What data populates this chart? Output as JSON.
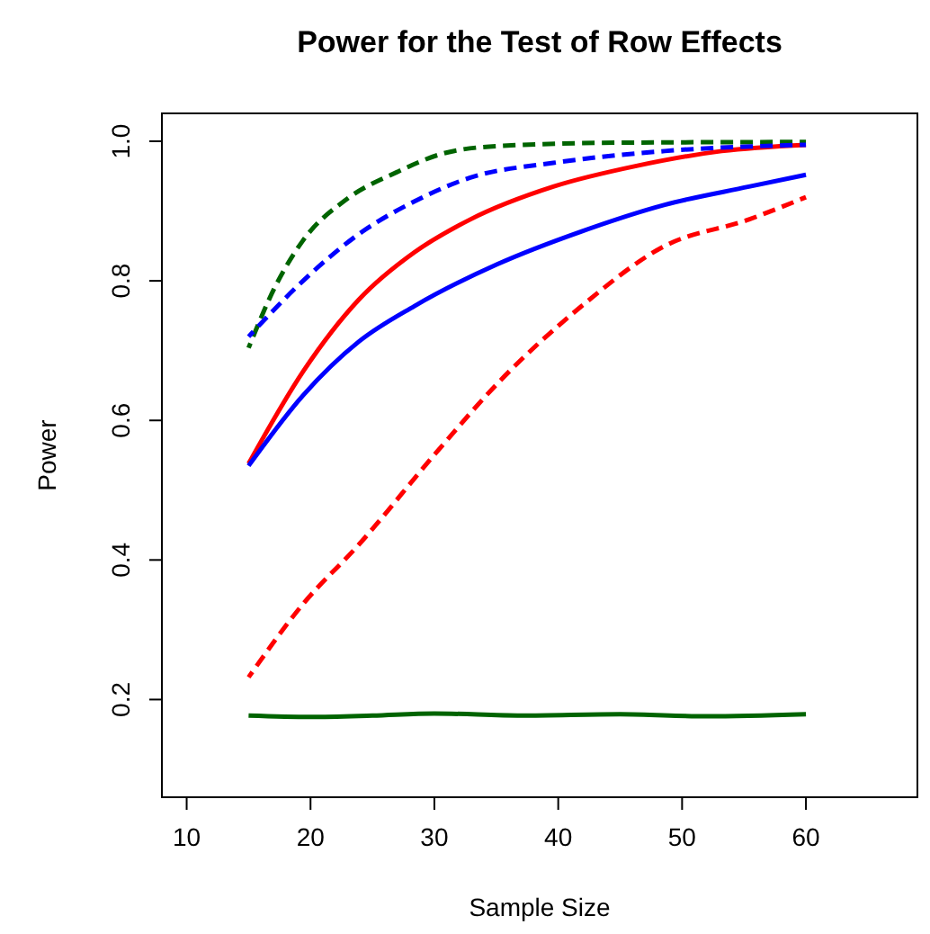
{
  "chart_data": {
    "type": "line",
    "title": "Power for the Test of Row Effects",
    "xlabel": "Sample Size",
    "ylabel": "Power",
    "xlim": [
      8,
      69
    ],
    "xticks": [
      10,
      20,
      30,
      40,
      50,
      60
    ],
    "ylim": [
      0.06,
      1.04
    ],
    "yticks": [
      {
        "value": 0.2,
        "label": "0.2"
      },
      {
        "value": 0.4,
        "label": "0.4"
      },
      {
        "value": 0.6,
        "label": "0.6"
      },
      {
        "value": 0.8,
        "label": "0.8"
      },
      {
        "value": 1.0,
        "label": "1.0"
      }
    ],
    "grid": false,
    "legend": false,
    "marker": "none",
    "series": [
      {
        "color": "#006400",
        "line_style": "dashed",
        "x": [
          15,
          17.1,
          19.4,
          23,
          27,
          30.6,
          35,
          45,
          60
        ],
        "values": [
          0.704,
          0.79,
          0.858,
          0.918,
          0.956,
          0.982,
          0.993,
          0.998,
          0.999
        ]
      },
      {
        "color": "#0000ff",
        "line_style": "dashed",
        "x": [
          15,
          19.4,
          23.9,
          28.4,
          32.9,
          39.6,
          48.6,
          60
        ],
        "values": [
          0.72,
          0.8,
          0.867,
          0.914,
          0.948,
          0.969,
          0.986,
          0.995
        ]
      },
      {
        "color": "#ff0000",
        "line_style": "solid",
        "x": [
          15,
          19.4,
          23.9,
          28.4,
          32.9,
          39.6,
          46.4,
          53.2,
          60
        ],
        "values": [
          0.538,
          0.67,
          0.773,
          0.841,
          0.888,
          0.935,
          0.965,
          0.986,
          0.995
        ]
      },
      {
        "color": "#0000ff",
        "line_style": "solid",
        "x": [
          15,
          19.4,
          23.9,
          28.4,
          35.1,
          41.9,
          48.6,
          55.4,
          60
        ],
        "values": [
          0.535,
          0.636,
          0.713,
          0.764,
          0.824,
          0.871,
          0.909,
          0.935,
          0.952
        ]
      },
      {
        "color": "#ff0000",
        "line_style": "dashed",
        "x": [
          15,
          19.4,
          23.9,
          30.2,
          35.1,
          41.9,
          48.6,
          55.4,
          60
        ],
        "values": [
          0.232,
          0.337,
          0.422,
          0.555,
          0.653,
          0.764,
          0.85,
          0.888,
          0.92
        ]
      },
      {
        "color": "#006400",
        "line_style": "solid",
        "x": [
          15,
          20,
          25,
          30,
          37,
          45,
          52,
          60
        ],
        "values": [
          0.177,
          0.175,
          0.177,
          0.18,
          0.177,
          0.179,
          0.176,
          0.179
        ]
      }
    ]
  }
}
